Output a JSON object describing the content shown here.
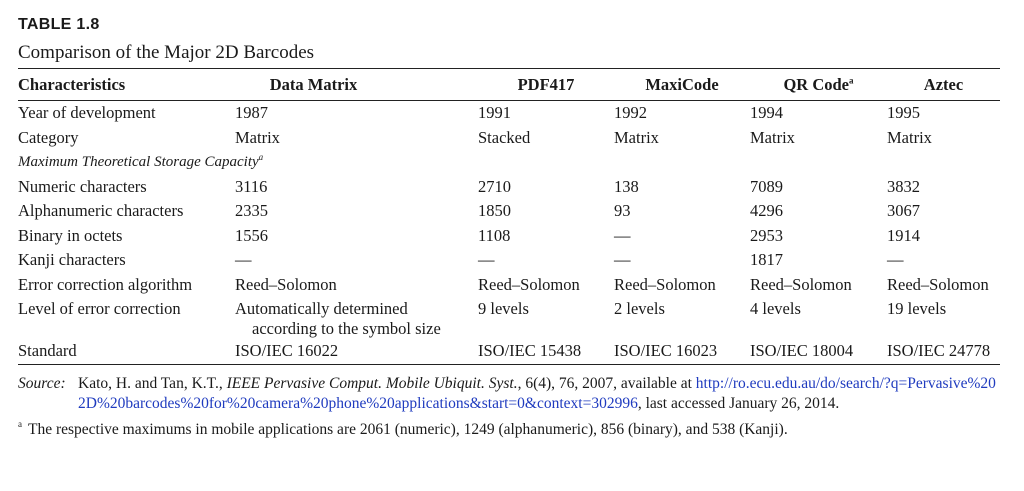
{
  "table_label": "TABLE 1.8",
  "caption": "Comparison of the Major 2D Barcodes",
  "headers": {
    "characteristics": "Characteristics",
    "data_matrix": "Data Matrix",
    "pdf417": "PDF417",
    "maxicode": "MaxiCode",
    "qr_code": "QR Code",
    "qr_code_note": "a",
    "aztec": "Aztec"
  },
  "rows": {
    "year": {
      "label": "Year of development",
      "dm": "1987",
      "pdf": "1991",
      "maxi": "1992",
      "qr": "1994",
      "aztec": "1995"
    },
    "category": {
      "label": "Category",
      "dm": "Matrix",
      "pdf": "Stacked",
      "maxi": "Matrix",
      "qr": "Matrix",
      "aztec": "Matrix"
    },
    "section": {
      "label": "Maximum Theoretical Storage Capacity",
      "note": "a"
    },
    "numeric": {
      "label": "Numeric characters",
      "dm": "3116",
      "pdf": "2710",
      "maxi": "138",
      "qr": "7089",
      "aztec": "3832"
    },
    "alnum": {
      "label": "Alphanumeric characters",
      "dm": "2335",
      "pdf": "1850",
      "maxi": "93",
      "qr": "4296",
      "aztec": "3067"
    },
    "binary": {
      "label": "Binary in octets",
      "dm": "1556",
      "pdf": "1108",
      "maxi": "—",
      "qr": "2953",
      "aztec": "1914"
    },
    "kanji": {
      "label": "Kanji characters",
      "dm": "—",
      "pdf": "—",
      "maxi": "—",
      "qr": "1817",
      "aztec": "—"
    },
    "algorithm": {
      "label": "Error correction algorithm",
      "dm": "Reed–Solomon",
      "pdf": "Reed–Solomon",
      "maxi": "Reed–Solomon",
      "qr": "Reed–Solomon",
      "aztec": "Reed–Solomon"
    },
    "level": {
      "label": "Level of error correction",
      "dm_line1": "Automatically determined",
      "dm_line2": "according to the symbol size",
      "pdf": "9 levels",
      "maxi": "2 levels",
      "qr": "4 levels",
      "aztec": "19 levels"
    },
    "standard": {
      "label": "Standard",
      "dm": "ISO/IEC 16022",
      "pdf": "ISO/IEC 15438",
      "maxi": "ISO/IEC 16023",
      "qr": "ISO/IEC 18004",
      "aztec": "ISO/IEC 24778"
    }
  },
  "source": {
    "label": "Source:",
    "authors": "Kato, H. and Tan, K.T., ",
    "journal": "IEEE Pervasive Comput. Mobile Ubiquit. Syst.",
    "details": ", 6(4), 76, 2007, available at ",
    "url": "http://ro.ecu.edu.au/do/search/?q=Pervasive%202D%20barcodes%20for%20camera%20phone%20applications&start=0&context=302996",
    "accessed": ", last accessed January 26, 2014."
  },
  "footnote": {
    "mark": "a",
    "text": "The respective maximums in mobile applications are 2061 (numeric), 1249 (alphanumeric), 856 (binary), and 538 (Kanji)."
  },
  "colors": {
    "text": "#1a1a1a",
    "link": "#1f3bbf",
    "rule": "#222222",
    "background": "#ffffff"
  }
}
